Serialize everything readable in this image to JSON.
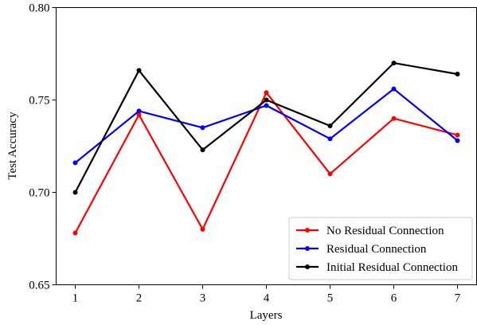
{
  "chart_data": {
    "type": "line",
    "title": "",
    "xlabel": "Layers",
    "ylabel": "Test Accuracy",
    "x": [
      1,
      2,
      3,
      4,
      5,
      6,
      7
    ],
    "x_ticks": [
      "1",
      "2",
      "3",
      "4",
      "5",
      "6",
      "7"
    ],
    "xlim": [
      0.7,
      7.3
    ],
    "ylim": [
      0.65,
      0.8
    ],
    "y_ticks": [
      "0.65",
      "0.70",
      "0.75",
      "0.80"
    ],
    "grid": false,
    "legend_position": "bottom-right",
    "series": [
      {
        "name": "No Residual Connection",
        "color": "#ff0000",
        "values": [
          0.678,
          0.742,
          0.68,
          0.754,
          0.71,
          0.74,
          0.731
        ]
      },
      {
        "name": "Residual Connection",
        "color": "#0000ff",
        "values": [
          0.716,
          0.744,
          0.735,
          0.747,
          0.729,
          0.756,
          0.728
        ]
      },
      {
        "name": "Initial Residual Connection",
        "color": "#000000",
        "values": [
          0.7,
          0.766,
          0.723,
          0.75,
          0.736,
          0.77,
          0.764
        ]
      }
    ]
  }
}
